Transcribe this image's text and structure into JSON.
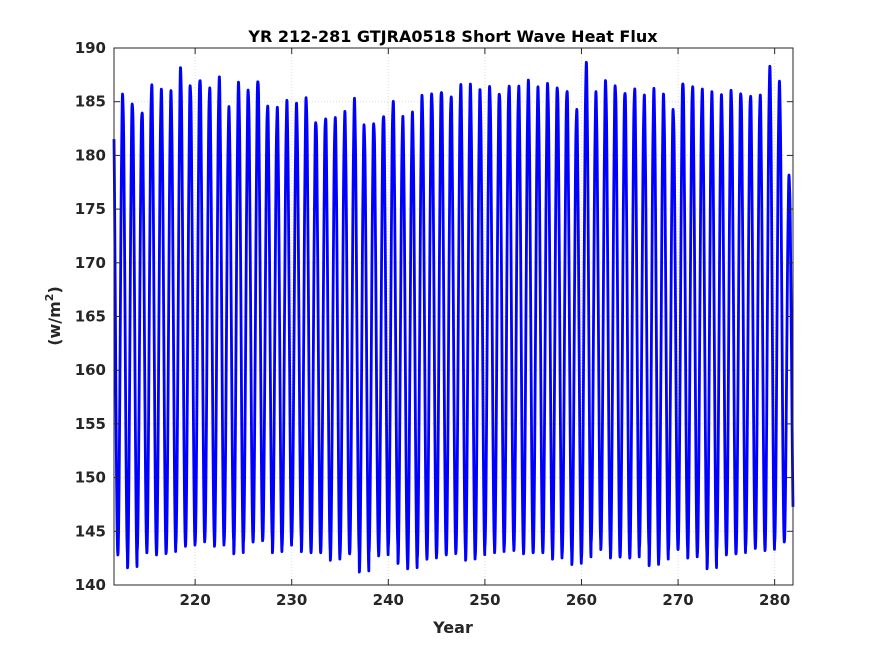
{
  "chart_data": {
    "type": "line",
    "title": "YR 212-281 GTJRA0518 Short Wave Heat Flux",
    "xlabel": "Year",
    "ylabel_base": "(w/m",
    "ylabel_sup": "2",
    "ylabel_close": ")",
    "xlim": [
      211.6,
      281.9
    ],
    "ylim": [
      140,
      190
    ],
    "xticks": [
      220,
      230,
      240,
      250,
      260,
      270,
      280
    ],
    "yticks": [
      140,
      145,
      150,
      155,
      160,
      165,
      170,
      175,
      180,
      185,
      190
    ],
    "grid": true,
    "series_color": "#0000ff",
    "cycle_start_year": 212,
    "annual_maxima": [
      185.6,
      185.0,
      184.2,
      186.5,
      185.9,
      185.7,
      188.0,
      186.6,
      187.3,
      186.3,
      187.1,
      184.2,
      186.6,
      186.1,
      187.2,
      184.7,
      184.3,
      184.8,
      184.6,
      185.3,
      183.3,
      183.6,
      183.4,
      183.8,
      185.0,
      182.7,
      183.1,
      183.9,
      185.0,
      183.4,
      183.7,
      185.4,
      185.8,
      186.2,
      185.5,
      186.4,
      186.3,
      185.9,
      186.4,
      186.0,
      186.6,
      186.3,
      186.7,
      186.1,
      186.6,
      186.5,
      186.2,
      184.2,
      188.4,
      185.6,
      186.8,
      186.6,
      186.1,
      186.2,
      185.4,
      185.9,
      185.5,
      184.3,
      187.0,
      186.5,
      186.0,
      185.6,
      185.4,
      186.0,
      186.0,
      185.7,
      185.5,
      188.0,
      186.6,
      178.0
    ],
    "annual_minima": [
      142.8,
      141.6,
      143.2,
      143.0,
      142.8,
      143.0,
      143.8,
      143.6,
      143.9,
      144.2,
      143.6,
      144.0,
      142.9,
      144.0,
      144.0,
      144.2,
      143.0,
      143.6,
      144.3,
      143.1,
      143.0,
      143.0,
      142.3,
      142.8,
      142.9,
      141.2,
      143.0,
      142.7,
      143.6,
      142.0,
      141.5,
      142.5,
      142.4,
      142.8,
      142.8,
      143.1,
      142.3,
      142.7,
      143.6,
      143.0,
      143.5,
      143.2,
      142.9,
      143.0,
      143.0,
      142.4,
      142.9,
      141.9,
      142.5,
      144.0,
      143.3,
      142.5,
      142.6,
      142.5,
      143.5,
      141.8,
      142.3,
      143.2,
      143.3,
      142.5,
      142.9,
      141.5,
      143.3,
      142.8,
      142.9,
      143.6,
      143.4,
      143.2,
      144.0,
      144.0
    ]
  }
}
